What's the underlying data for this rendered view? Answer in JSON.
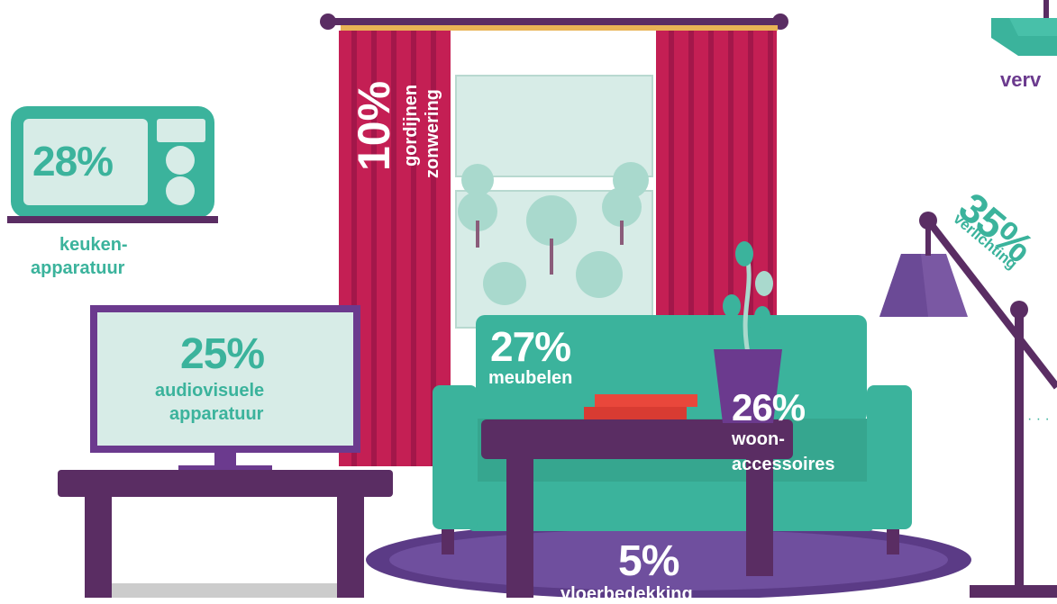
{
  "items": [
    {
      "key": "kitchen",
      "percent": "28%",
      "label_line1": "keuken-",
      "label_line2": "apparatuur",
      "color": "#3bb39c"
    },
    {
      "key": "av",
      "percent": "25%",
      "label_line1": "audiovisuele",
      "label_line2": "apparatuur",
      "color": "#3bb39c"
    },
    {
      "key": "curtains",
      "percent": "10%",
      "label_line1": "gordijnen",
      "label_line2": "zonwering",
      "color": "#ffffff"
    },
    {
      "key": "furniture",
      "percent": "27%",
      "label_line1": "meubelen",
      "color": "#ffffff"
    },
    {
      "key": "accessories",
      "percent": "26%",
      "label_line1": "woon-",
      "label_line2": "accessoires",
      "color": "#ffffff"
    },
    {
      "key": "lighting",
      "percent": "35%",
      "label_line1": "verlichting",
      "color": "#3bb39c"
    },
    {
      "key": "flooring",
      "percent": "5%",
      "label_line1": "vloerbedekking",
      "color": "#ffffff"
    },
    {
      "key": "heating",
      "label_partial": "verv",
      "color": "#6b3a8e"
    }
  ],
  "palette": {
    "teal": "#3bb39c",
    "purple": "#5a2d63",
    "curtain": "#c41f54",
    "rug": "#5b3b86",
    "window": "#d7ece7"
  }
}
